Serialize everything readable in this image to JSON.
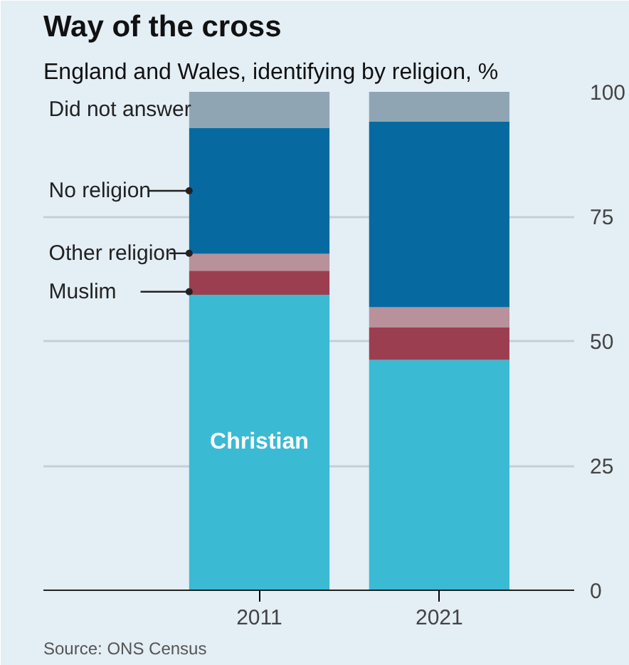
{
  "chart_data": {
    "type": "bar",
    "title": "Way of the cross",
    "subtitle": "England and Wales, identifying by religion, %",
    "categories": [
      "2011",
      "2021"
    ],
    "stacked": true,
    "series": [
      {
        "name": "Christian",
        "color": "#3bbad3",
        "values": [
          59.3,
          46.2
        ]
      },
      {
        "name": "Muslim",
        "color": "#9b3f50",
        "values": [
          4.8,
          6.5
        ]
      },
      {
        "name": "Other religion",
        "color": "#b8919b",
        "values": [
          3.4,
          4.1
        ]
      },
      {
        "name": "No religion",
        "color": "#066aa0",
        "values": [
          25.3,
          37.2
        ]
      },
      {
        "name": "Did not answer",
        "color": "#8fa5b3",
        "values": [
          7.2,
          6.0
        ]
      }
    ],
    "ylim": [
      0,
      100
    ],
    "yticks": [
      0,
      25,
      50,
      75,
      100
    ],
    "grid": "y",
    "legend": false,
    "annotations": [
      "Source: ONS Census"
    ]
  }
}
